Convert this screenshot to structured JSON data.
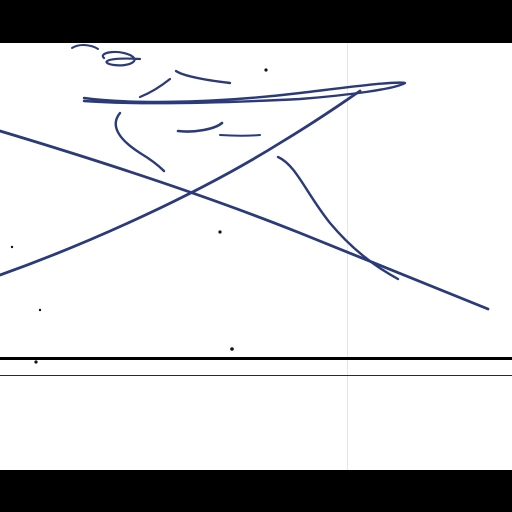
{
  "document": {
    "type": "scanned-signature",
    "ink_color": "#2b3a78",
    "paper_color": "#ffffff",
    "border_color": "#000000",
    "signature_glyph": "handwritten-signature"
  }
}
